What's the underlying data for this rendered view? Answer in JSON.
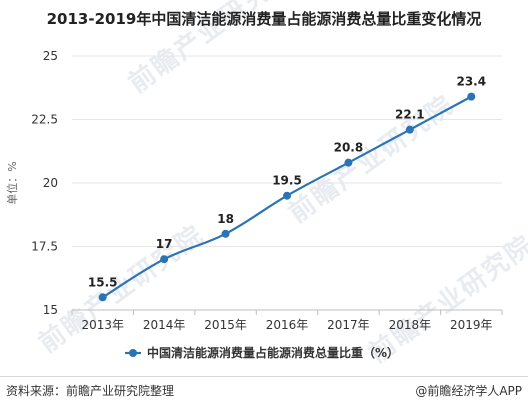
{
  "title": "2013-2019年中国清洁能源消费量占能源消费总量比重变化情况",
  "watermark": "前瞻产业研究院",
  "footer": {
    "source": "资料来源：前瞻产业研究院整理",
    "brand": "@前瞻经济学人APP"
  },
  "colors": {
    "line": "#2a74b5",
    "axis": "#bfbfbf",
    "grid": "#e6e6e6"
  },
  "chart_data": {
    "type": "line",
    "title": "2013-2019年中国清洁能源消费量占能源消费总量比重变化情况",
    "ylabel": "单位：%",
    "xlabel": "",
    "categories": [
      "2013年",
      "2014年",
      "2015年",
      "2016年",
      "2017年",
      "2018年",
      "2019年"
    ],
    "series": [
      {
        "name": "中国清洁能源消费量占能源消费总量比重（%）",
        "values": [
          15.5,
          17,
          18,
          19.5,
          20.8,
          22.1,
          23.4
        ],
        "labels": [
          "15.5",
          "17",
          "18",
          "19.5",
          "20.8",
          "22.1",
          "23.4"
        ]
      }
    ],
    "ylim": [
      15,
      25
    ],
    "yticks": [
      15,
      17.5,
      20,
      22.5,
      25
    ],
    "ytick_labels": [
      "15",
      "17.5",
      "20",
      "22.5",
      "25"
    ],
    "grid": "horizontal",
    "legend_position": "bottom"
  }
}
